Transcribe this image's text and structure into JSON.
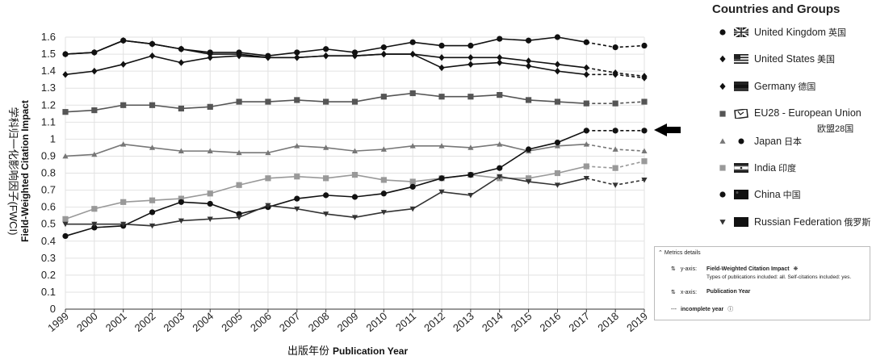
{
  "chart_data": {
    "type": "line",
    "x": [
      "1999",
      "2000",
      "2001",
      "2002",
      "2003",
      "2004",
      "2005",
      "2006",
      "2007",
      "2008",
      "2009",
      "2010",
      "2011",
      "2012",
      "2013",
      "2014",
      "2015",
      "2016",
      "2017",
      "2018",
      "2019"
    ],
    "ylabel_en": "Field-Weighted Citation Impact",
    "ylabel_cn": "学科归一化影响因子(FWCI)",
    "xlabel_en": "Publication Year",
    "xlabel_cn": "出版年份",
    "ylim": [
      0,
      1.6
    ],
    "yticks": [
      "0",
      "0.1",
      "0.2",
      "0.3",
      "0.4",
      "0.5",
      "0.6",
      "0.7",
      "0.8",
      "0.9",
      "1",
      "1.1",
      "1.2",
      "1.3",
      "1.4",
      "1.5",
      "1.6"
    ],
    "grid": true,
    "incomplete_from_index": 19,
    "series": [
      {
        "name": "United Kingdom",
        "marker": "circle",
        "color": "#111111",
        "values": [
          1.5,
          1.51,
          1.58,
          1.56,
          1.53,
          1.51,
          1.51,
          1.49,
          1.51,
          1.53,
          1.51,
          1.54,
          1.57,
          1.55,
          1.55,
          1.59,
          1.58,
          1.6,
          1.57,
          1.54,
          1.55
        ]
      },
      {
        "name": "United States",
        "marker": "diamond",
        "color": "#111111",
        "values": [
          1.5,
          1.51,
          1.58,
          1.56,
          1.53,
          1.5,
          1.5,
          1.48,
          1.48,
          1.49,
          1.49,
          1.5,
          1.5,
          1.48,
          1.48,
          1.48,
          1.46,
          1.44,
          1.42,
          1.39,
          1.37
        ]
      },
      {
        "name": "Germany",
        "marker": "diamond",
        "color": "#111111",
        "values": [
          1.38,
          1.4,
          1.44,
          1.49,
          1.45,
          1.48,
          1.49,
          1.48,
          1.48,
          1.49,
          1.49,
          1.5,
          1.5,
          1.42,
          1.44,
          1.45,
          1.43,
          1.4,
          1.38,
          1.38,
          1.36
        ]
      },
      {
        "name": "EU28",
        "marker": "square",
        "color": "#555555",
        "values": [
          1.16,
          1.17,
          1.2,
          1.2,
          1.18,
          1.19,
          1.22,
          1.22,
          1.23,
          1.22,
          1.22,
          1.25,
          1.27,
          1.25,
          1.25,
          1.26,
          1.23,
          1.22,
          1.21,
          1.21,
          1.22
        ]
      },
      {
        "name": "Japan",
        "marker": "triangle",
        "color": "#777777",
        "values": [
          0.9,
          0.91,
          0.97,
          0.95,
          0.93,
          0.93,
          0.92,
          0.92,
          0.96,
          0.95,
          0.93,
          0.94,
          0.96,
          0.96,
          0.95,
          0.97,
          0.93,
          0.96,
          0.97,
          0.94,
          0.93
        ]
      },
      {
        "name": "India",
        "marker": "square",
        "color": "#999999",
        "values": [
          0.53,
          0.59,
          0.63,
          0.64,
          0.65,
          0.68,
          0.73,
          0.77,
          0.78,
          0.77,
          0.79,
          0.76,
          0.75,
          0.77,
          0.79,
          0.77,
          0.77,
          0.8,
          0.84,
          0.83,
          0.87
        ]
      },
      {
        "name": "China",
        "marker": "circle",
        "color": "#111111",
        "values": [
          0.43,
          0.48,
          0.49,
          0.57,
          0.63,
          0.62,
          0.56,
          0.6,
          0.65,
          0.67,
          0.66,
          0.68,
          0.72,
          0.77,
          0.79,
          0.83,
          0.94,
          0.98,
          1.05,
          1.05,
          1.05
        ]
      },
      {
        "name": "Russian Federation",
        "marker": "tri-down",
        "color": "#333333",
        "values": [
          0.5,
          0.5,
          0.5,
          0.49,
          0.52,
          0.53,
          0.54,
          0.61,
          0.59,
          0.56,
          0.54,
          0.57,
          0.59,
          0.69,
          0.67,
          0.78,
          0.75,
          0.73,
          0.77,
          0.73,
          0.76
        ]
      }
    ]
  },
  "legend": {
    "title": "Countries and Groups",
    "items": [
      {
        "label": "United Kingdom",
        "cn": "英国",
        "marker": "circle",
        "color": "#111111",
        "flag": "uk"
      },
      {
        "label": "United States",
        "cn": "美国",
        "marker": "diamond",
        "color": "#111111",
        "flag": "us"
      },
      {
        "label": "Germany",
        "cn": "德国",
        "marker": "diamond",
        "color": "#111111",
        "flag": "de"
      },
      {
        "label": "EU28 - European Union",
        "cn": "欧盟28国",
        "marker": "square",
        "color": "#555555",
        "flag": "eu"
      },
      {
        "label": "Japan",
        "cn": "日本",
        "marker": "triangle",
        "color": "#777777",
        "flag": "jp"
      },
      {
        "label": "India",
        "cn": "印度",
        "marker": "square",
        "color": "#999999",
        "flag": "in"
      },
      {
        "label": "China",
        "cn": "中国",
        "marker": "circle",
        "color": "#111111",
        "flag": "cn"
      },
      {
        "label": "Russian Federation",
        "cn": "俄罗斯",
        "marker": "tri-down",
        "color": "#333333",
        "flag": "ru"
      }
    ]
  },
  "metrics": {
    "header": "Metrics details",
    "y_axis_label": "y-axis:",
    "y_axis_value": "Field-Weighted Citation Impact",
    "y_axis_note": "Types of publications included: all. Self-citations included: yes.",
    "x_axis_label": "x-axis:",
    "x_axis_value": "Publication Year",
    "incomplete_label": "incomplete year"
  }
}
